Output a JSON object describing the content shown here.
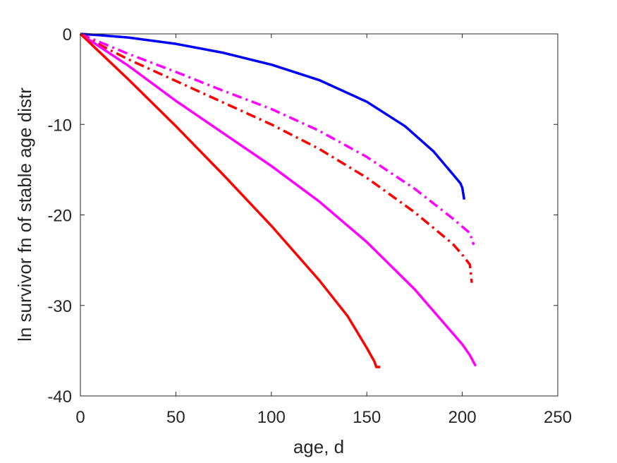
{
  "chart_data": {
    "type": "line",
    "title": "",
    "xlabel": "age, d",
    "ylabel": "ln survivor fn of stable age distr",
    "xlim": [
      0,
      250
    ],
    "ylim": [
      -40,
      0
    ],
    "xticks": [
      0,
      50,
      100,
      150,
      200,
      250
    ],
    "yticks": [
      0,
      -10,
      -20,
      -30,
      -40
    ],
    "xtick_labels": [
      "0",
      "50",
      "100",
      "150",
      "200",
      "250"
    ],
    "ytick_labels": [
      "0",
      "-10",
      "-20",
      "-30",
      "-40"
    ],
    "grid": false,
    "legend": "none",
    "colors": {
      "axes": "#262626",
      "background": "#ffffff",
      "blue": "#0000ff",
      "magenta": "#ff00ff",
      "red": "#ff0000"
    },
    "series": [
      {
        "color": "#0000ff",
        "dash": "solid",
        "points": [
          [
            0,
            0
          ],
          [
            10,
            -0.15
          ],
          [
            25,
            -0.4
          ],
          [
            50,
            -1.1
          ],
          [
            75,
            -2.1
          ],
          [
            100,
            -3.4
          ],
          [
            125,
            -5.1
          ],
          [
            150,
            -7.5
          ],
          [
            170,
            -10.2
          ],
          [
            185,
            -13
          ],
          [
            195,
            -15.5
          ],
          [
            199,
            -16.5
          ],
          [
            200,
            -17
          ],
          [
            201,
            -18.3
          ]
        ]
      },
      {
        "color": "#ff00ff",
        "dash": "dashdot",
        "points": [
          [
            0,
            0
          ],
          [
            10,
            -0.9
          ],
          [
            25,
            -2.2
          ],
          [
            50,
            -4.2
          ],
          [
            75,
            -6.3
          ],
          [
            100,
            -8.3
          ],
          [
            125,
            -10.7
          ],
          [
            150,
            -13.6
          ],
          [
            175,
            -17.1
          ],
          [
            195,
            -20.4
          ],
          [
            200,
            -21.3
          ],
          [
            204,
            -22
          ],
          [
            206,
            -23.3
          ]
        ]
      },
      {
        "color": "#ff0000",
        "dash": "dashdot",
        "points": [
          [
            0,
            0
          ],
          [
            10,
            -1.2
          ],
          [
            25,
            -2.8
          ],
          [
            50,
            -5.2
          ],
          [
            75,
            -7.6
          ],
          [
            100,
            -10.0
          ],
          [
            125,
            -12.7
          ],
          [
            150,
            -15.9
          ],
          [
            175,
            -19.7
          ],
          [
            195,
            -23.2
          ],
          [
            200,
            -24.4
          ],
          [
            204,
            -25.5
          ],
          [
            205,
            -27.5
          ]
        ]
      },
      {
        "color": "#ff00ff",
        "dash": "solid",
        "points": [
          [
            0,
            0
          ],
          [
            25,
            -3.5
          ],
          [
            50,
            -7.4
          ],
          [
            75,
            -11.0
          ],
          [
            100,
            -14.6
          ],
          [
            125,
            -18.5
          ],
          [
            150,
            -23.0
          ],
          [
            175,
            -28.2
          ],
          [
            200,
            -34.3
          ],
          [
            204,
            -35.5
          ],
          [
            207,
            -36.7
          ]
        ]
      },
      {
        "color": "#ff0000",
        "dash": "solid",
        "points": [
          [
            0,
            0
          ],
          [
            25,
            -5.0
          ],
          [
            50,
            -10.2
          ],
          [
            75,
            -15.6
          ],
          [
            100,
            -21.2
          ],
          [
            125,
            -27.2
          ],
          [
            140,
            -31.2
          ],
          [
            150,
            -34.7
          ],
          [
            154,
            -36.2
          ],
          [
            155,
            -36.8
          ],
          [
            157,
            -36.8
          ]
        ]
      }
    ]
  }
}
